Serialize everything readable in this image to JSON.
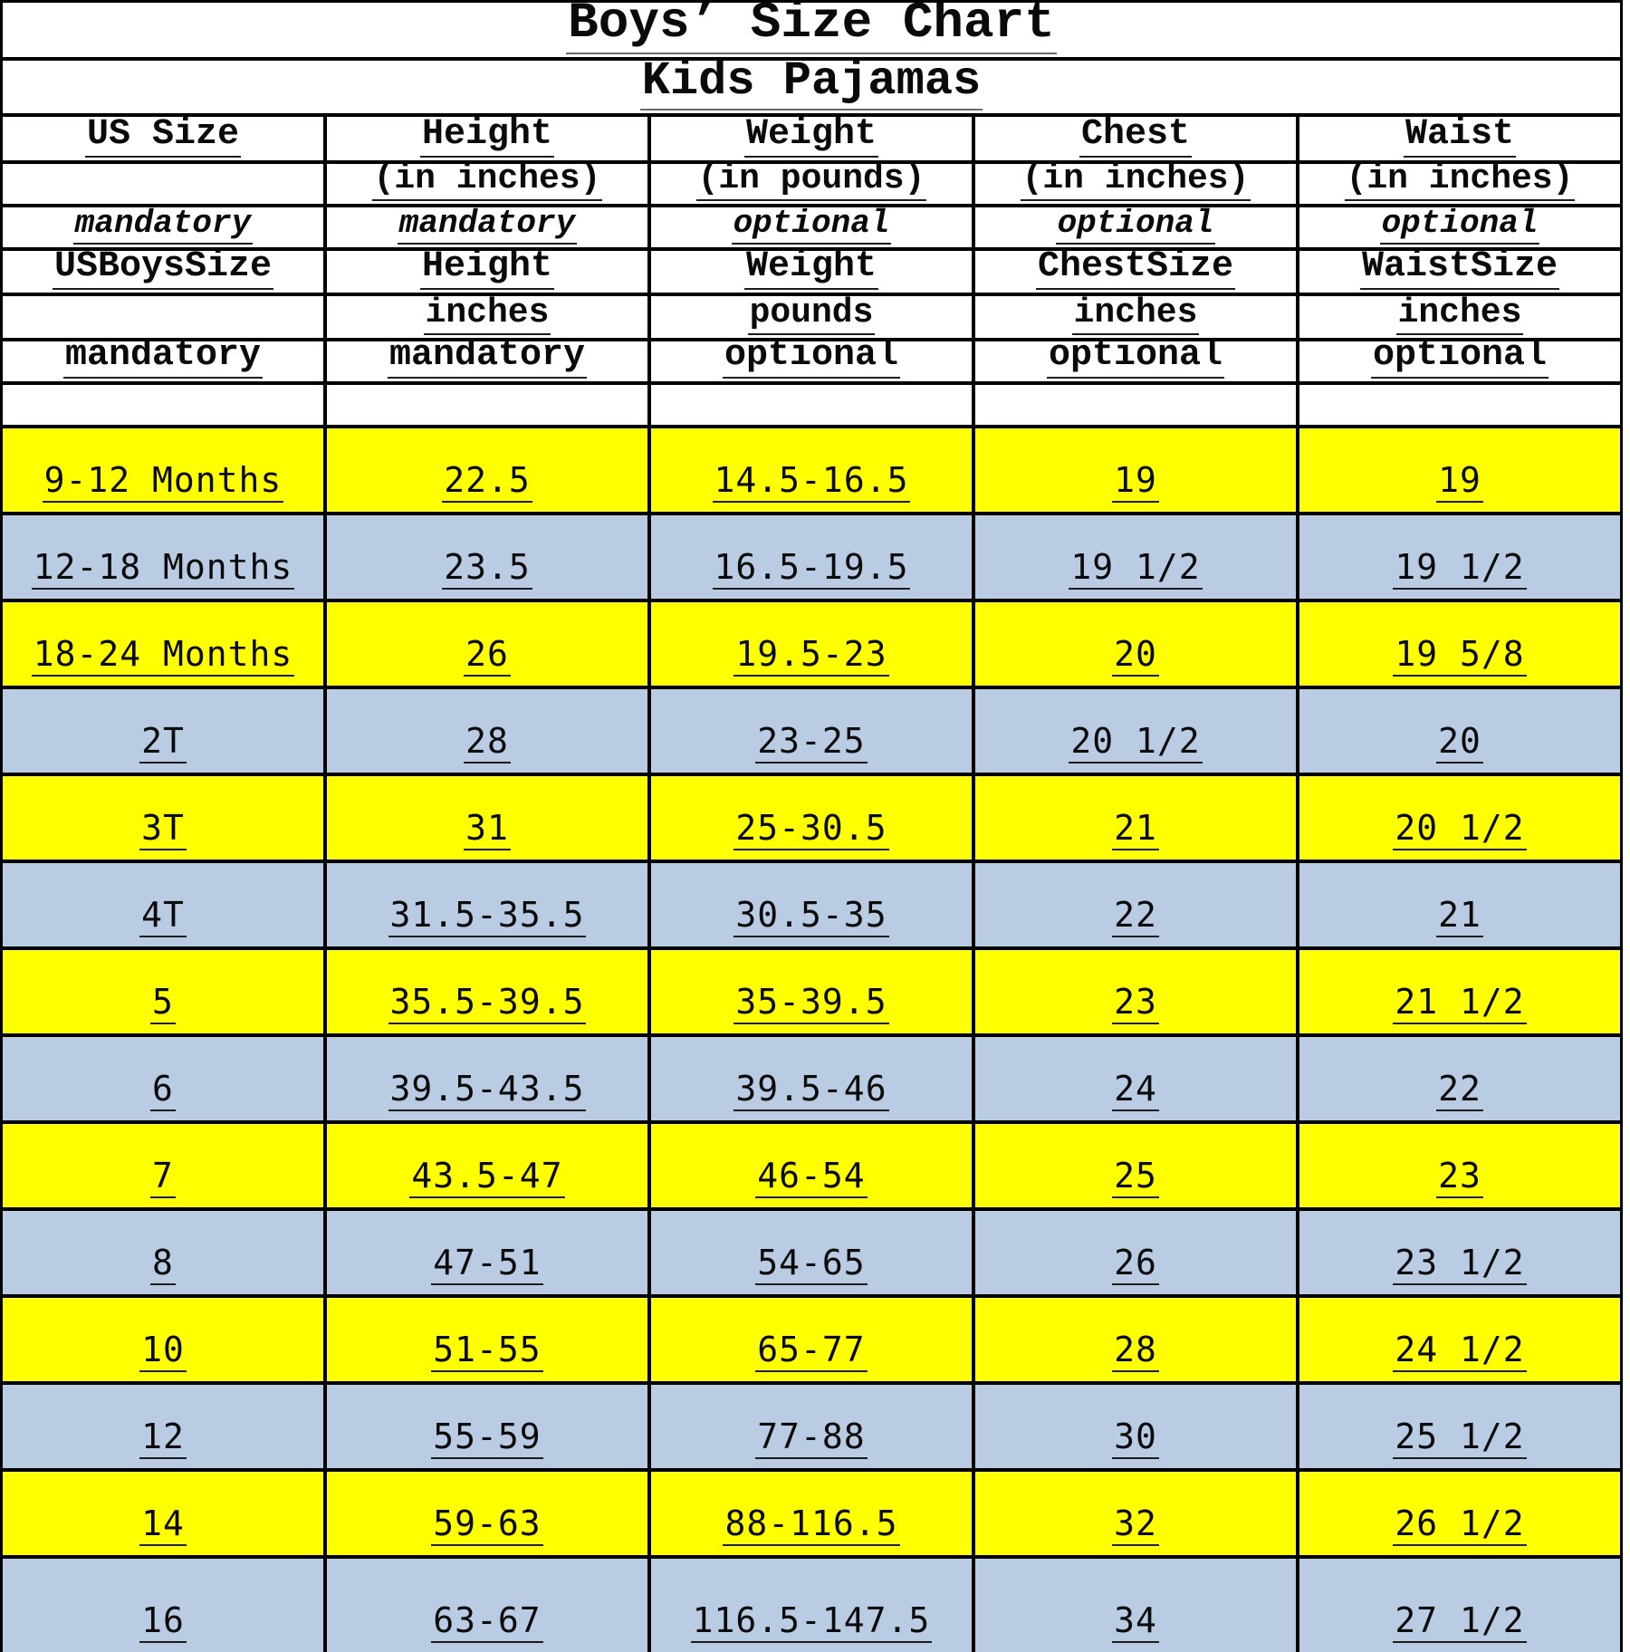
{
  "title": "Boys’ Size Chart",
  "subtitle": "Kids Pajamas",
  "colors": {
    "row_yellow": "#ffff00",
    "row_blue": "#b9cce3",
    "border": "#000000",
    "paper": "#ffffff",
    "text": "#0a0a0a"
  },
  "table": {
    "columns": [
      "US Size",
      "Height",
      "Weight",
      "Chest",
      "Waist"
    ],
    "header_rows": [
      {
        "style": "main",
        "cells": [
          "US Size",
          "Height",
          "Weight",
          "Chest",
          "Waist"
        ]
      },
      {
        "style": "sub",
        "cells": [
          "",
          "(in inches)",
          "(in pounds)",
          "(in inches)",
          "(in inches)"
        ]
      },
      {
        "style": "italic",
        "cells": [
          "mandatory",
          "mandatory",
          "optional",
          "optional",
          "optional"
        ]
      },
      {
        "style": "main",
        "cells": [
          "USBoysSize",
          "Height",
          "Weight",
          "ChestSize",
          "WaistSize"
        ]
      },
      {
        "style": "sub",
        "cells": [
          "",
          "inches",
          "pounds",
          "inches",
          "inches"
        ]
      },
      {
        "style": "main",
        "cells": [
          "mandatory",
          "mandatory",
          "optional",
          "optional",
          "optional"
        ]
      },
      {
        "style": "sub",
        "cells": [
          "",
          "",
          "",
          "",
          ""
        ]
      }
    ],
    "data_rows": [
      {
        "bg": "yellow",
        "cells": [
          "9-12 Months",
          "22.5",
          "14.5-16.5",
          "19",
          "19"
        ]
      },
      {
        "bg": "blue",
        "cells": [
          "12-18 Months",
          "23.5",
          "16.5-19.5",
          "19 1/2",
          "19 1/2"
        ]
      },
      {
        "bg": "yellow",
        "cells": [
          "18-24 Months",
          "26",
          "19.5-23",
          "20",
          "19 5/8"
        ]
      },
      {
        "bg": "blue",
        "cells": [
          "2T",
          "28",
          "23-25",
          "20 1/2",
          "20"
        ]
      },
      {
        "bg": "yellow",
        "cells": [
          "3T",
          "31",
          "25-30.5",
          "21",
          "20 1/2"
        ]
      },
      {
        "bg": "blue",
        "cells": [
          "4T",
          "31.5-35.5",
          "30.5-35",
          "22",
          "21"
        ]
      },
      {
        "bg": "yellow",
        "cells": [
          "5",
          "35.5-39.5",
          "35-39.5",
          "23",
          "21 1/2"
        ]
      },
      {
        "bg": "blue",
        "cells": [
          "6",
          "39.5-43.5",
          "39.5-46",
          "24",
          "22"
        ]
      },
      {
        "bg": "yellow",
        "cells": [
          "7",
          "43.5-47",
          "46-54",
          "25",
          "23"
        ]
      },
      {
        "bg": "blue",
        "cells": [
          "8",
          "47-51",
          "54-65",
          "26",
          "23 1/2"
        ]
      },
      {
        "bg": "yellow",
        "cells": [
          "10",
          "51-55",
          "65-77",
          "28",
          "24 1/2"
        ]
      },
      {
        "bg": "blue",
        "cells": [
          "12",
          "55-59",
          "77-88",
          "30",
          "25 1/2"
        ]
      },
      {
        "bg": "yellow",
        "cells": [
          "14",
          "59-63",
          "88-116.5",
          "32",
          "26 1/2"
        ]
      },
      {
        "bg": "blue",
        "cells": [
          "16",
          "63-67",
          "116.5-147.5",
          "34",
          "27 1/2"
        ]
      }
    ]
  }
}
